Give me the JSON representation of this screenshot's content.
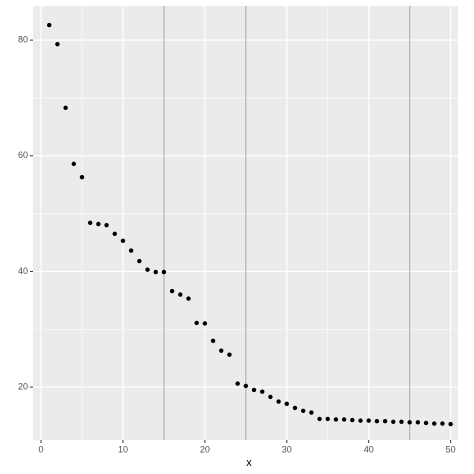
{
  "chart_data": {
    "type": "scatter",
    "x_label": "x",
    "x": [
      1,
      2,
      3,
      4,
      5,
      6,
      7,
      8,
      9,
      10,
      11,
      12,
      13,
      14,
      15,
      16,
      17,
      18,
      19,
      20,
      21,
      22,
      23,
      24,
      25,
      26,
      27,
      28,
      29,
      30,
      31,
      32,
      33,
      34,
      35,
      36,
      37,
      38,
      39,
      40,
      41,
      42,
      43,
      44,
      45,
      46,
      47,
      48,
      49,
      50
    ],
    "values": [
      82.6,
      79.3,
      68.3,
      58.6,
      56.3,
      48.4,
      48.2,
      48.0,
      46.5,
      45.3,
      43.6,
      41.8,
      40.3,
      39.9,
      39.9,
      36.6,
      36.0,
      35.3,
      31.1,
      31.0,
      28.0,
      26.3,
      25.6,
      20.6,
      20.2,
      19.5,
      19.2,
      18.3,
      17.5,
      17.1,
      16.4,
      15.9,
      15.6,
      14.5,
      14.5,
      14.4,
      14.4,
      14.3,
      14.2,
      14.2,
      14.1,
      14.1,
      14.0,
      14.0,
      13.9,
      13.9,
      13.8,
      13.7,
      13.7,
      13.6
    ],
    "color": "#000000",
    "xlim": [
      -0.98,
      50.9
    ],
    "ylim": [
      10.85,
      85.9
    ],
    "xticks": [
      0,
      10,
      20,
      30,
      40,
      50
    ],
    "yticks": [
      20,
      40,
      60,
      80
    ],
    "xminor": [
      5,
      15,
      25,
      35,
      45
    ],
    "yminor": [
      30,
      50,
      70
    ],
    "vlines": [
      15,
      25,
      45
    ],
    "vline_color": "#b3b3b3",
    "grid": true
  }
}
